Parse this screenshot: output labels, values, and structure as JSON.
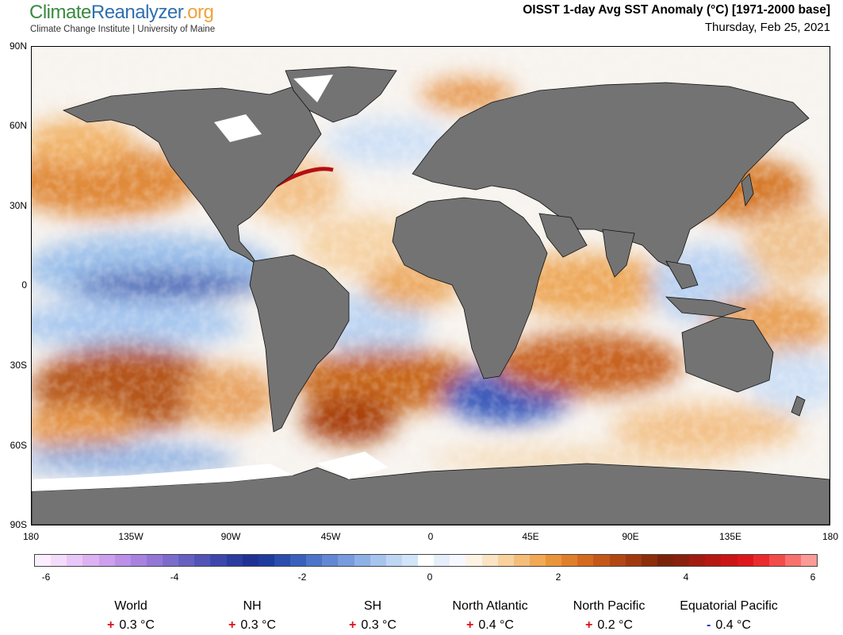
{
  "header": {
    "logo_part1": "Climate",
    "logo_part2": "Reanalyzer",
    "logo_part3": ".org",
    "subtitle": "Climate Change Institute | University of Maine",
    "title": "OISST 1-day Avg SST Anomaly (°C) [1971-2000 base]",
    "date": "Thursday, Feb 25, 2021"
  },
  "map": {
    "lat_labels": [
      "90N",
      "60N",
      "30N",
      "0",
      "30S",
      "60S",
      "90S"
    ],
    "lon_labels": [
      "180",
      "135W",
      "90W",
      "45W",
      "0",
      "45E",
      "90E",
      "135E",
      "180"
    ]
  },
  "colorbar": {
    "labels": [
      "-6",
      "-4",
      "-2",
      "0",
      "2",
      "4",
      "6"
    ],
    "colors": [
      "#fbeefe",
      "#f3dcfb",
      "#e9c6f8",
      "#dcb2f3",
      "#cda0ee",
      "#bc8fe8",
      "#a982e0",
      "#9476d6",
      "#7d6bcc",
      "#675fc1",
      "#5253b7",
      "#3d47ab",
      "#2b3b9f",
      "#1f3294",
      "#1e3c9e",
      "#2a4dae",
      "#3a60bd",
      "#4d74c9",
      "#6287d4",
      "#789bdd",
      "#8fb0e6",
      "#a7c4ee",
      "#bed6f4",
      "#d2e4f8",
      "#e5effb",
      "#f5f8fd",
      "#fdf3e5",
      "#fbe4c3",
      "#f8d19d",
      "#f5bd78",
      "#f1a955",
      "#ea943a",
      "#e07f2b",
      "#d36a20",
      "#c45819",
      "#b34713",
      "#a0390f",
      "#8c2d0c",
      "#7a230a",
      "#8a1f0d",
      "#a11b10",
      "#b71713",
      "#cc1416",
      "#de161b",
      "#eb2a2d",
      "#f34a4a",
      "#f8716e",
      "#fc9a97"
    ],
    "zero_color": "#ffffff"
  },
  "stats": [
    {
      "name": "World",
      "sign": "+",
      "value": "0.3 °C"
    },
    {
      "name": "NH",
      "sign": "+",
      "value": "0.3 °C"
    },
    {
      "name": "SH",
      "sign": "+",
      "value": "0.3 °C"
    },
    {
      "name": "North Atlantic",
      "sign": "+",
      "value": "0.4 °C"
    },
    {
      "name": "North Pacific",
      "sign": "+",
      "value": "0.2 °C"
    },
    {
      "name": "Equatorial Pacific",
      "sign": "-",
      "value": "0.4 °C"
    }
  ],
  "colors": {
    "land": "#737373",
    "ice": "#ffffff",
    "warm": "#d8121b",
    "cold": "#1d2bc9"
  }
}
